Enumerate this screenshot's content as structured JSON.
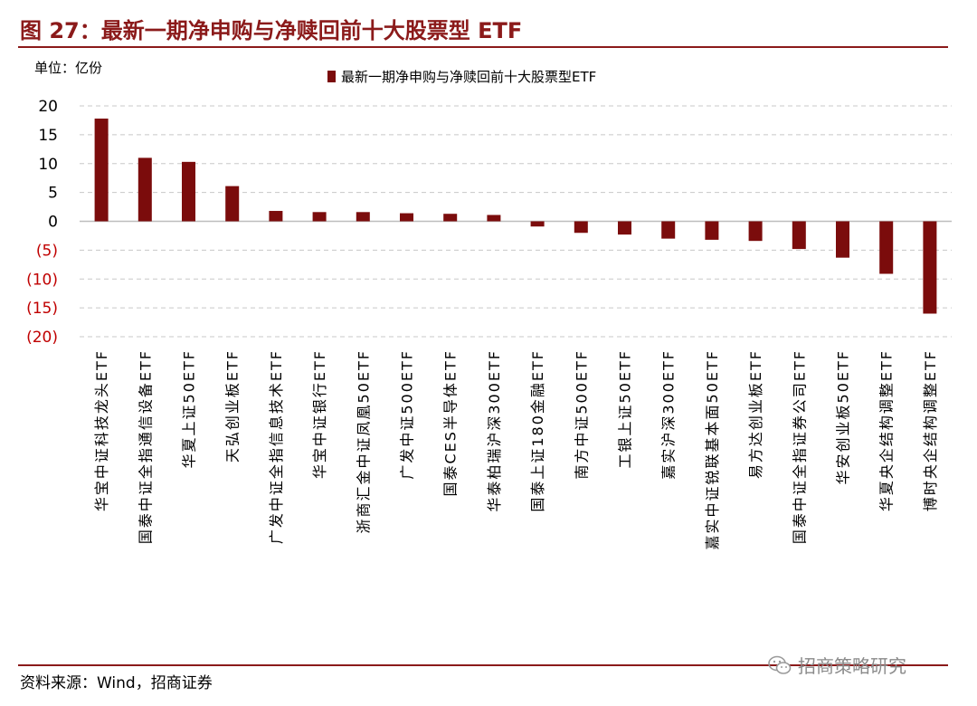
{
  "figure_title": "图 27：最新一期净申购与净赎回前十大股票型 ETF",
  "unit_label": "单位：亿份",
  "source_note": "资料来源：Wind，招商证券",
  "watermark": "招商策略研究",
  "watermark_icon": "wechat-icon",
  "colors": {
    "bar": "#7B0C0C",
    "title": "#8B1A1A",
    "negative_tick": "#C00000",
    "grid": "#C8C8C8"
  },
  "chart_data": {
    "type": "bar",
    "title": "",
    "xlabel": "",
    "ylabel": "",
    "ylim": [
      -20,
      20
    ],
    "yticks": [
      20,
      15,
      10,
      5,
      0,
      -5,
      -10,
      -15,
      -20
    ],
    "ytick_labels": [
      "20",
      "15",
      "10",
      "5",
      "0",
      "(5)",
      "(10)",
      "(15)",
      "(20)"
    ],
    "grid": true,
    "legend_position": "top",
    "categories": [
      "华宝中证科技龙头ETF",
      "国泰中证全指通信设备ETF",
      "华夏上证50ETF",
      "天弘创业板ETF",
      "广发中证全指信息技术ETF",
      "华宝中证银行ETF",
      "浙商汇金中证凤凰50ETF",
      "广发中证500ETF",
      "国泰CES半导体ETF",
      "华泰柏瑞沪深300ETF",
      "国泰上证180金融ETF",
      "南方中证500ETF",
      "工银上证50ETF",
      "嘉实沪深300ETF",
      "嘉实中证锐联基本面50ETF",
      "易方达创业板ETF",
      "国泰中证全指证券公司ETF",
      "华安创业板50ETF",
      "华夏央企结构调整ETF",
      "博时央企结构调整ETF"
    ],
    "series": [
      {
        "name": "最新一期净申购与净赎回前十大股票型ETF",
        "values": [
          17.8,
          11.0,
          10.3,
          6.1,
          1.8,
          1.6,
          1.6,
          1.4,
          1.3,
          1.1,
          -0.9,
          -2.0,
          -2.3,
          -3.0,
          -3.2,
          -3.4,
          -4.8,
          -6.3,
          -9.1,
          -16.0
        ]
      }
    ]
  }
}
